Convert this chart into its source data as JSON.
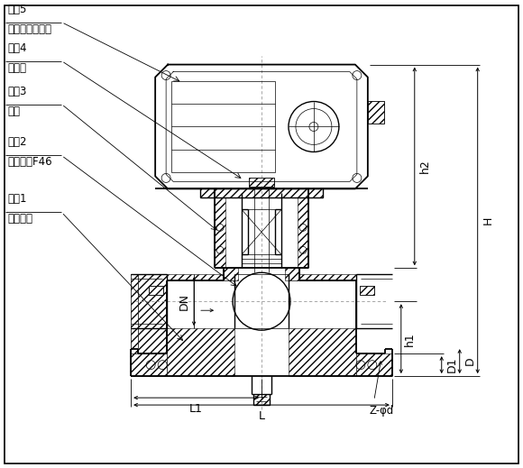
{
  "bg_color": "#ffffff",
  "labels": {
    "seq5": "序号5",
    "seq5_name": "角行程执行机构",
    "seq4": "序号4",
    "seq4_name": "联轴节",
    "seq3": "序号3",
    "seq3_name": "支架",
    "seq2": "序号2",
    "seq2_name": "带柄球衬F46",
    "seq1": "序号1",
    "seq1_name": "衬氟阀体",
    "dim_H": "H",
    "dim_h2": "h2",
    "dim_D1": "D1",
    "dim_D": "D",
    "dim_h1": "h1",
    "dim_DN": "DN",
    "dim_L1": "L1",
    "dim_L": "L",
    "dim_Zd": "Z-φd"
  }
}
